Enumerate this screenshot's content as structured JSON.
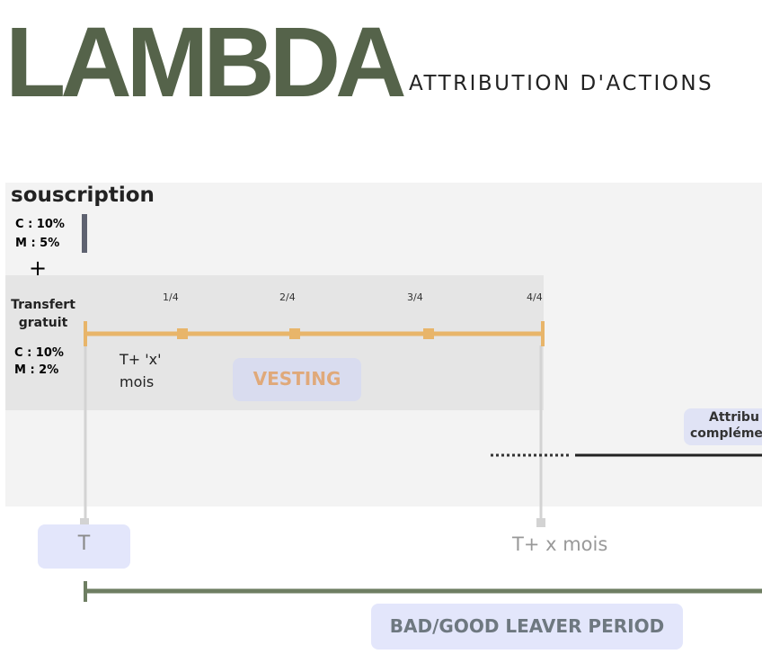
{
  "header": {
    "title": "LAMBDA",
    "subtitle": "ATTRIBUTION D'ACTIONS"
  },
  "souscription": {
    "label": "souscription",
    "lines": [
      "C : 10%",
      "M : 5%"
    ]
  },
  "plus": "+",
  "transfert": {
    "label": [
      "Transfert",
      "gratuit"
    ],
    "lines": [
      "C : 10%",
      "M : 2%"
    ]
  },
  "vesting_ticks": [
    "1/4",
    "2/4",
    "3/4",
    "4/4"
  ],
  "delay": [
    "T+ 'x'",
    "mois"
  ],
  "vesting": "VESTING",
  "attribution": [
    "Attribu",
    "compléme"
  ],
  "t_start": "T",
  "t_end": "T+ x mois",
  "leaver": "BAD/GOOD LEAVER PERIOD"
}
